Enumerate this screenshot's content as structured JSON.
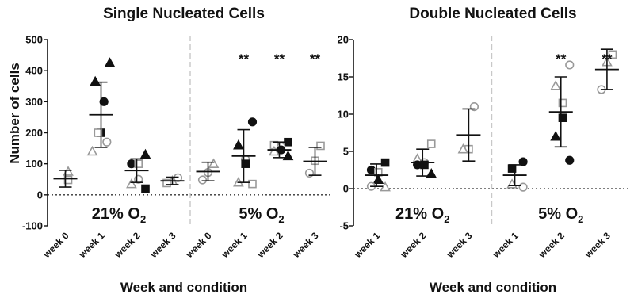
{
  "chart_data": [
    {
      "type": "scatter",
      "title": "Single Nucleated Cells",
      "xlabel": "Week and condition",
      "ylabel": "Number of cells",
      "ylim": [
        -100,
        500
      ],
      "yticks": [
        -100,
        0,
        100,
        200,
        300,
        400,
        500
      ],
      "categories": [
        "week 0",
        "week 1",
        "week 2",
        "week 3",
        "week 0",
        "week 1",
        "week 2",
        "week 3"
      ],
      "conditions": [
        {
          "text": "21% O",
          "sub": "2",
          "from": 0,
          "to": 3
        },
        {
          "text": "5% O",
          "sub": "2",
          "from": 4,
          "to": 7
        }
      ],
      "divider_after": 3,
      "significance": [
        "",
        "",
        "",
        "",
        "",
        "**",
        "**",
        "**"
      ],
      "groups": [
        {
          "mean": 52,
          "sd": 27,
          "points": [
            {
              "y": 75,
              "m": "open-triangle"
            },
            {
              "y": 48,
              "m": "open-square"
            }
          ]
        },
        {
          "mean": 258,
          "sd": 105,
          "points": [
            {
              "y": 425,
              "m": "filled-triangle"
            },
            {
              "y": 365,
              "m": "filled-triangle"
            },
            {
              "y": 300,
              "m": "filled-circle"
            },
            {
              "y": 200,
              "m": "filled-square"
            },
            {
              "y": 200,
              "m": "open-square"
            },
            {
              "y": 170,
              "m": "open-circle"
            },
            {
              "y": 140,
              "m": "open-triangle"
            }
          ]
        },
        {
          "mean": 78,
          "sd": 38,
          "points": [
            {
              "y": 130,
              "m": "filled-triangle"
            },
            {
              "y": 100,
              "m": "filled-circle"
            },
            {
              "y": 100,
              "m": "open-square"
            },
            {
              "y": 50,
              "m": "open-circle"
            },
            {
              "y": 35,
              "m": "open-triangle"
            },
            {
              "y": 20,
              "m": "filled-square"
            }
          ]
        },
        {
          "mean": 45,
          "sd": 12,
          "points": [
            {
              "y": 55,
              "m": "open-circle"
            },
            {
              "y": 45,
              "m": "open-triangle"
            },
            {
              "y": 38,
              "m": "open-square"
            }
          ]
        },
        {
          "mean": 75,
          "sd": 30,
          "points": [
            {
              "y": 100,
              "m": "open-triangle"
            },
            {
              "y": 72,
              "m": "open-circle"
            },
            {
              "y": 48,
              "m": "open-circle"
            }
          ]
        },
        {
          "mean": 125,
          "sd": 85,
          "points": [
            {
              "y": 235,
              "m": "filled-circle"
            },
            {
              "y": 160,
              "m": "filled-triangle"
            },
            {
              "y": 115,
              "m": "open-circle"
            },
            {
              "y": 100,
              "m": "filled-square"
            },
            {
              "y": 40,
              "m": "open-triangle"
            },
            {
              "y": 35,
              "m": "open-square"
            }
          ]
        },
        {
          "mean": 145,
          "sd": 25,
          "points": [
            {
              "y": 170,
              "m": "filled-square"
            },
            {
              "y": 160,
              "m": "open-square"
            },
            {
              "y": 155,
              "m": "open-circle"
            },
            {
              "y": 145,
              "m": "filled-circle"
            },
            {
              "y": 140,
              "m": "open-triangle"
            },
            {
              "y": 125,
              "m": "filled-triangle"
            }
          ]
        },
        {
          "mean": 108,
          "sd": 45,
          "points": [
            {
              "y": 158,
              "m": "open-square"
            },
            {
              "y": 110,
              "m": "open-square"
            },
            {
              "y": 70,
              "m": "open-circle"
            }
          ]
        }
      ]
    },
    {
      "type": "scatter",
      "title": "Double Nucleated Cells",
      "xlabel": "Week and condition",
      "ylabel": "",
      "ylim": [
        -5,
        20
      ],
      "yticks": [
        -5,
        0,
        5,
        10,
        15,
        20
      ],
      "categories": [
        "week 1",
        "week 2",
        "week 3",
        "week 1",
        "week 2",
        "week 3"
      ],
      "conditions": [
        {
          "text": "21% O",
          "sub": "2",
          "from": 0,
          "to": 2
        },
        {
          "text": "5% O",
          "sub": "2",
          "from": 3,
          "to": 5
        }
      ],
      "divider_after": 2,
      "significance": [
        "",
        "",
        "",
        "",
        "**",
        "**"
      ],
      "groups": [
        {
          "mean": 1.8,
          "sd": 1.5,
          "points": [
            {
              "y": 3.5,
              "m": "filled-square"
            },
            {
              "y": 2.5,
              "m": "filled-circle"
            },
            {
              "y": 2.2,
              "m": "open-square"
            },
            {
              "y": 1.2,
              "m": "filled-triangle"
            },
            {
              "y": 0.3,
              "m": "open-circle"
            },
            {
              "y": 0.2,
              "m": "open-triangle"
            }
          ]
        },
        {
          "mean": 3.5,
          "sd": 1.8,
          "points": [
            {
              "y": 6.0,
              "m": "open-square"
            },
            {
              "y": 4.0,
              "m": "open-triangle"
            },
            {
              "y": 3.5,
              "m": "open-circle"
            },
            {
              "y": 3.2,
              "m": "filled-square"
            },
            {
              "y": 3.2,
              "m": "filled-circle"
            },
            {
              "y": 2.0,
              "m": "filled-triangle"
            }
          ]
        },
        {
          "mean": 7.2,
          "sd": 3.5,
          "points": [
            {
              "y": 11.0,
              "m": "open-circle"
            },
            {
              "y": 5.3,
              "m": "open-square"
            },
            {
              "y": 5.3,
              "m": "open-triangle"
            }
          ]
        },
        {
          "mean": 1.8,
          "sd": 1.4,
          "points": [
            {
              "y": 3.6,
              "m": "filled-circle"
            },
            {
              "y": 2.7,
              "m": "filled-square"
            },
            {
              "y": 0.6,
              "m": "open-triangle"
            },
            {
              "y": 0.2,
              "m": "open-circle"
            }
          ]
        },
        {
          "mean": 10.3,
          "sd": 4.7,
          "points": [
            {
              "y": 16.6,
              "m": "open-circle"
            },
            {
              "y": 13.8,
              "m": "open-triangle"
            },
            {
              "y": 11.5,
              "m": "open-square"
            },
            {
              "y": 9.5,
              "m": "filled-square"
            },
            {
              "y": 7.0,
              "m": "filled-triangle"
            },
            {
              "y": 3.8,
              "m": "filled-circle"
            }
          ]
        },
        {
          "mean": 16.0,
          "sd": 2.7,
          "points": [
            {
              "y": 18.0,
              "m": "open-square"
            },
            {
              "y": 17.0,
              "m": "open-triangle"
            },
            {
              "y": 13.3,
              "m": "open-circle"
            }
          ]
        }
      ]
    }
  ]
}
